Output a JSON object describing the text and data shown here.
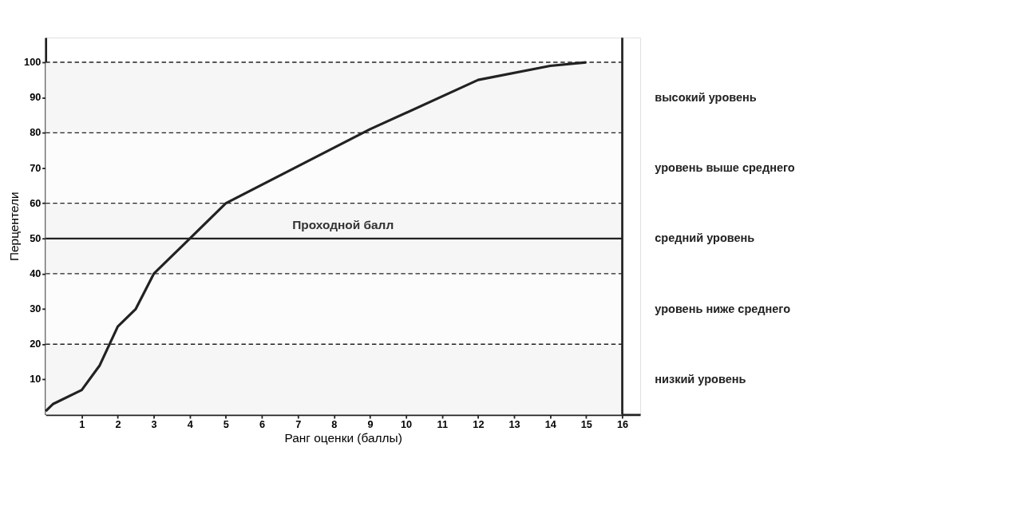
{
  "chart_data": {
    "type": "line",
    "xlabel": "Ранг оценки (баллы)",
    "ylabel": "Перцентели",
    "x": [
      0,
      0.2,
      1,
      1.5,
      2,
      2.5,
      3,
      4,
      5,
      9,
      12,
      14,
      15
    ],
    "series": [
      {
        "color": "#222222",
        "values": [
          1,
          3,
          7,
          14,
          25,
          30,
          40,
          50,
          60,
          81,
          95,
          99,
          100
        ]
      }
    ],
    "xlim": [
      0,
      16.5
    ],
    "ylim": [
      0,
      107
    ],
    "xticks": [
      1,
      2,
      3,
      4,
      5,
      6,
      7,
      8,
      9,
      10,
      11,
      12,
      13,
      14,
      15,
      16
    ],
    "yticks": [
      10,
      20,
      30,
      40,
      50,
      60,
      70,
      80,
      90,
      100
    ],
    "ref_lines": [
      {
        "axis": "y",
        "value": 20,
        "label": null,
        "line_style": "dashed"
      },
      {
        "axis": "y",
        "value": 40,
        "label": null,
        "line_style": "dashed"
      },
      {
        "axis": "y",
        "value": 60,
        "label": null,
        "line_style": "dashed"
      },
      {
        "axis": "y",
        "value": 80,
        "label": null,
        "line_style": "dashed"
      },
      {
        "axis": "y",
        "value": 100,
        "label": null,
        "line_style": "dashed"
      },
      {
        "axis": "y",
        "value": 50,
        "label": "Проходной балл",
        "line_style": "solid"
      },
      {
        "axis": "x",
        "value": 16,
        "label": null,
        "line_style": "solid"
      }
    ],
    "bands": [
      {
        "axis": "y",
        "from": 80,
        "to": 100,
        "label": "высокий уровень",
        "color": "#f6f6f6"
      },
      {
        "axis": "y",
        "from": 60,
        "to": 80,
        "label": "уровень выше среднего",
        "color": "#fcfcfc"
      },
      {
        "axis": "y",
        "from": 40,
        "to": 60,
        "label": "средний уровень",
        "color": "#f6f6f6"
      },
      {
        "axis": "y",
        "from": 20,
        "to": 40,
        "label": "уровень ниже среднего",
        "color": "#fcfcfc"
      },
      {
        "axis": "y",
        "from": 0,
        "to": 20,
        "label": "низкий уровень",
        "color": "#f6f6f6"
      }
    ],
    "grid": false,
    "marker": "none",
    "line_style": "solid"
  }
}
